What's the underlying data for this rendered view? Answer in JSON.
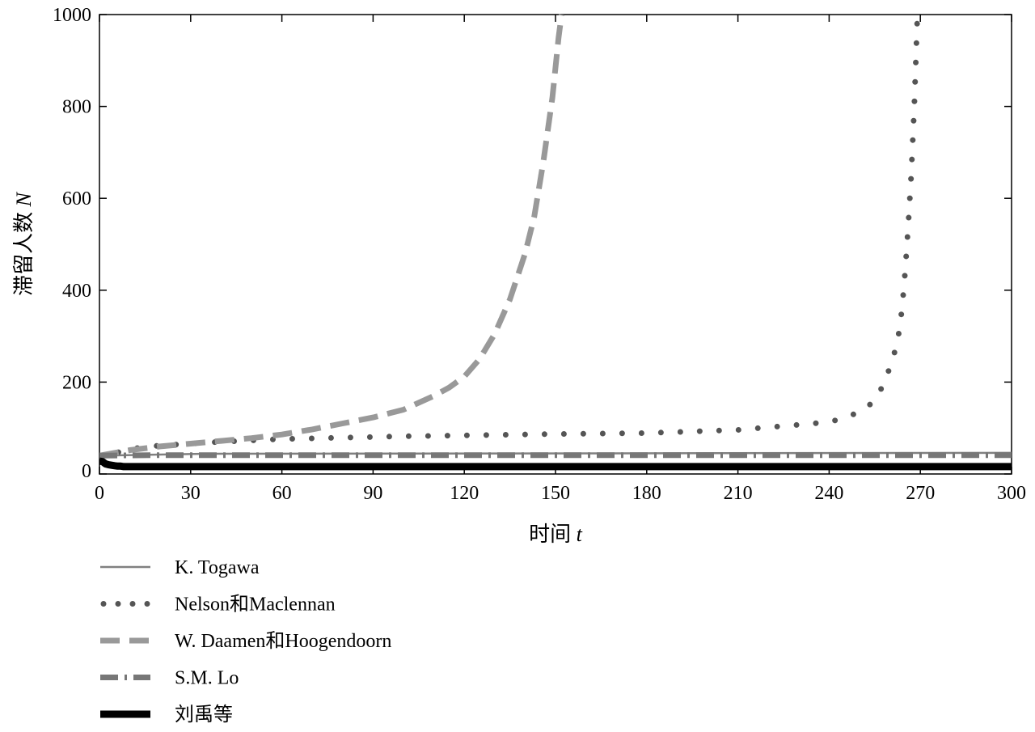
{
  "chart_data": {
    "type": "line",
    "xlabel": "时间 ",
    "xlabel_var": "t",
    "ylabel": "滞留人数 ",
    "ylabel_var": "N",
    "xlim": [
      0,
      300
    ],
    "ylim": [
      0,
      1000
    ],
    "xticks": [
      0,
      30,
      60,
      90,
      120,
      150,
      180,
      210,
      240,
      270,
      300
    ],
    "yticks": [
      0,
      200,
      400,
      600,
      800,
      1000
    ],
    "grid": false,
    "legend_position": "below-left",
    "series": [
      {
        "name": "K. Togawa",
        "color": "#808080",
        "style": "thin-solid",
        "x": [
          0,
          35,
          300
        ],
        "y": [
          40,
          44,
          46
        ]
      },
      {
        "name": "Nelson和Maclennan",
        "color": "#555555",
        "style": "dotted",
        "x": [
          0,
          12,
          20,
          30,
          40,
          50,
          60,
          80,
          100,
          120,
          150,
          180,
          210,
          230,
          240,
          245,
          250,
          253,
          256,
          258,
          260,
          262,
          263,
          264,
          265,
          266,
          267,
          268,
          269
        ],
        "y": [
          38,
          56,
          62,
          66,
          70,
          73,
          76,
          79,
          82,
          84,
          87,
          89,
          96,
          107,
          113,
          122,
          135,
          148,
          170,
          198,
          232,
          275,
          310,
          360,
          440,
          540,
          650,
          800,
          990
        ]
      },
      {
        "name": "W. Daamen和Hoogendoorn",
        "color": "#999999",
        "style": "dashed",
        "x": [
          0,
          10,
          20,
          30,
          40,
          50,
          60,
          70,
          80,
          90,
          100,
          110,
          115,
          120,
          125,
          130,
          135,
          140,
          143,
          146,
          149,
          151,
          152
        ],
        "y": [
          40,
          52,
          60,
          66,
          72,
          78,
          86,
          97,
          110,
          123,
          140,
          170,
          188,
          212,
          250,
          305,
          380,
          480,
          560,
          680,
          820,
          950,
          1000
        ]
      },
      {
        "name": "S.M. Lo",
        "color": "#777777",
        "style": "dash-dot",
        "x": [
          0,
          20,
          300
        ],
        "y": [
          40,
          41,
          41
        ]
      },
      {
        "name": "刘禹等",
        "color": "#000000",
        "style": "thick-solid",
        "x": [
          0,
          1,
          2,
          3,
          4,
          5,
          6,
          7,
          8,
          300
        ],
        "y": [
          28,
          27,
          22,
          20,
          19,
          18,
          17,
          17,
          16,
          16
        ]
      }
    ]
  }
}
